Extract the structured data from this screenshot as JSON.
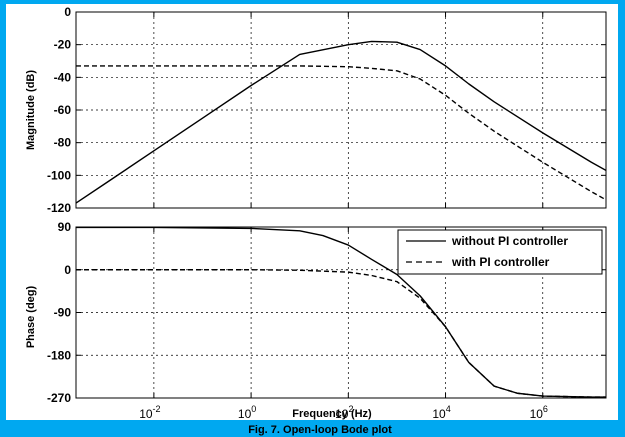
{
  "caption": "Fig. 7. Open-loop Bode plot",
  "chart_data": [
    {
      "type": "line",
      "panel": "magnitude",
      "ylabel": "Magnitude (dB)",
      "xscale": "log",
      "xlim": [
        0.00025,
        20000000
      ],
      "ylim": [
        -120,
        0
      ],
      "yticks": [
        0,
        -20,
        -40,
        -60,
        -80,
        -100,
        -120
      ],
      "ytick_labels": [
        "0",
        "-20",
        "-40",
        "-60",
        "-80",
        "-100",
        "-120"
      ],
      "grid": true,
      "series": [
        {
          "name": "without PI controller",
          "style": "solid",
          "x": [
            0.00025,
            0.001,
            0.01,
            0.1,
            1,
            10,
            100,
            300,
            1000,
            3000,
            10000,
            30000,
            100000,
            1000000,
            10000000,
            20000000
          ],
          "y": [
            -117,
            -105,
            -85,
            -65,
            -45,
            -26,
            -20,
            -18,
            -18.5,
            -23,
            -33,
            -44,
            -55,
            -74,
            -92,
            -97
          ]
        },
        {
          "name": "with PI controller",
          "style": "dashed",
          "x": [
            0.00025,
            0.001,
            0.01,
            0.1,
            1,
            10,
            100,
            300,
            1000,
            3000,
            10000,
            30000,
            100000,
            1000000,
            10000000,
            20000000
          ],
          "y": [
            -33,
            -33,
            -33,
            -33,
            -33,
            -33,
            -33.5,
            -34.5,
            -36,
            -41,
            -51,
            -62,
            -73,
            -92,
            -110,
            -115
          ]
        }
      ]
    },
    {
      "type": "line",
      "panel": "phase",
      "xlabel": "Frequency (Hz)",
      "ylabel": "Phase (deg)",
      "xscale": "log",
      "xlim": [
        0.00025,
        20000000
      ],
      "ylim": [
        -270,
        90
      ],
      "yticks": [
        90,
        0,
        -90,
        -180,
        -270
      ],
      "ytick_labels": [
        "90",
        "0",
        "-90",
        "-180",
        "-270"
      ],
      "xticks": [
        0.01,
        1,
        100,
        10000,
        1000000
      ],
      "xtick_labels": [
        {
          "base": "10",
          "exp": "-2"
        },
        {
          "base": "10",
          "exp": "0"
        },
        {
          "base": "10",
          "exp": "2"
        },
        {
          "base": "10",
          "exp": "4"
        },
        {
          "base": "10",
          "exp": "6"
        }
      ],
      "grid": true,
      "legend_position": "top-right",
      "series": [
        {
          "name": "without PI controller",
          "style": "solid",
          "x": [
            0.00025,
            0.01,
            1,
            10,
            30,
            100,
            300,
            1000,
            3000,
            10000,
            30000,
            100000,
            300000,
            1000000,
            10000000,
            20000000
          ],
          "y": [
            89,
            89,
            87,
            82,
            72,
            52,
            22,
            -10,
            -55,
            -120,
            -195,
            -245,
            -260,
            -266,
            -268,
            -268
          ]
        },
        {
          "name": "with PI controller",
          "style": "dashed",
          "x": [
            0.00025,
            0.01,
            1,
            10,
            100,
            300,
            1000,
            3000,
            10000,
            30000,
            100000,
            300000,
            1000000,
            10000000,
            20000000
          ],
          "y": [
            0,
            0,
            0,
            -1,
            -5,
            -12,
            -25,
            -60,
            -120,
            -195,
            -245,
            -260,
            -266,
            -268,
            -268
          ]
        }
      ]
    }
  ]
}
